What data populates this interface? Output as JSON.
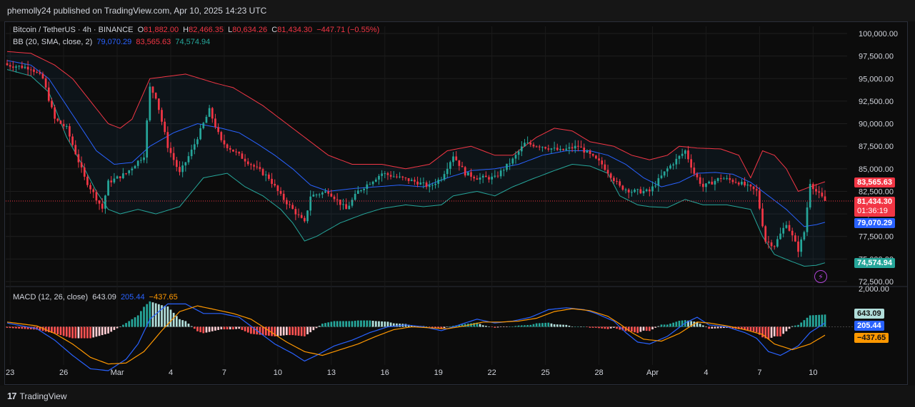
{
  "publish": {
    "text": "phemolly24 published on TradingView.com, Apr 10, 2025 14:23 UTC"
  },
  "symbol": {
    "title": "Bitcoin / TetherUS · 4h · BINANCE",
    "open_label": "O",
    "open": "81,882.00",
    "high_label": "H",
    "high": "82,466.35",
    "low_label": "L",
    "low": "80,634.26",
    "close_label": "C",
    "close": "81,434.30",
    "change": "−447.71 (−0.55%)"
  },
  "bb": {
    "label": "BB (20, SMA, close, 2)",
    "basis": "79,070.29",
    "upper": "83,565.63",
    "lower": "74,574.94"
  },
  "macd": {
    "label": "MACD (12, 26, close)",
    "hist": "643.09",
    "macd": "205.44",
    "signal": "−437.65"
  },
  "price_tags": {
    "upper": "83,565.63",
    "last": "81,434.30",
    "countdown": "01:36:19",
    "basis": "79,070.29",
    "lower": "74,574.94",
    "macd_hist": "643.09",
    "macd_line": "205.44",
    "macd_signal": "−437.65"
  },
  "footer": {
    "brand": "TradingView"
  },
  "colors": {
    "up": "#26a69a",
    "down": "#f23645",
    "bb_upper": "#f23645",
    "bb_basis": "#2962ff",
    "bb_lower": "#26a69a",
    "macd_line": "#2962ff",
    "signal_line": "#ff9800",
    "bg": "#0f0f0f"
  },
  "icons": {
    "bolt": "lightning-icon",
    "logo": "tradingview-logo-icon"
  },
  "chart_data": {
    "type": "candlestick",
    "title": "Bitcoin / TetherUS · 4h · BINANCE",
    "ylim": [
      72500,
      100000
    ],
    "y_ticks": [
      "100,000.00",
      "97,500.00",
      "95,000.00",
      "92,500.00",
      "90,000.00",
      "87,500.00",
      "85,000.00",
      "82,500.00",
      "80,000.00",
      "77,500.00",
      "75,000.00",
      "72,500.00"
    ],
    "y_tick_values": [
      100000,
      97500,
      95000,
      92500,
      90000,
      87500,
      85000,
      82500,
      80000,
      77500,
      75000,
      72500
    ],
    "x_ticks": [
      "23",
      "26",
      "Mar",
      "4",
      "7",
      "10",
      "13",
      "16",
      "19",
      "22",
      "25",
      "28",
      "Apr",
      "4",
      "7",
      "10"
    ],
    "x_tick_index": [
      1,
      19,
      37,
      55,
      73,
      91,
      109,
      127,
      145,
      163,
      181,
      199,
      217,
      235,
      253,
      271
    ],
    "num_bars": 276,
    "close_anchors": [
      [
        0,
        96500
      ],
      [
        8,
        96200
      ],
      [
        12,
        95000
      ],
      [
        16,
        90500
      ],
      [
        20,
        89500
      ],
      [
        26,
        84000
      ],
      [
        32,
        80600
      ],
      [
        34,
        83500
      ],
      [
        40,
        84500
      ],
      [
        46,
        86500
      ],
      [
        48,
        94000
      ],
      [
        50,
        93000
      ],
      [
        54,
        87500
      ],
      [
        58,
        84500
      ],
      [
        62,
        87000
      ],
      [
        68,
        91500
      ],
      [
        72,
        88000
      ],
      [
        78,
        86500
      ],
      [
        82,
        85500
      ],
      [
        88,
        84000
      ],
      [
        92,
        82000
      ],
      [
        96,
        80500
      ],
      [
        100,
        79000
      ],
      [
        102,
        82000
      ],
      [
        108,
        82500
      ],
      [
        114,
        80500
      ],
      [
        118,
        82500
      ],
      [
        126,
        84500
      ],
      [
        132,
        84000
      ],
      [
        138,
        83500
      ],
      [
        142,
        83000
      ],
      [
        146,
        84000
      ],
      [
        150,
        86500
      ],
      [
        154,
        84500
      ],
      [
        158,
        84000
      ],
      [
        164,
        84000
      ],
      [
        170,
        86000
      ],
      [
        174,
        87800
      ],
      [
        180,
        87500
      ],
      [
        186,
        87000
      ],
      [
        192,
        87500
      ],
      [
        196,
        86500
      ],
      [
        200,
        85500
      ],
      [
        206,
        83000
      ],
      [
        210,
        82500
      ],
      [
        216,
        82500
      ],
      [
        222,
        85000
      ],
      [
        228,
        87000
      ],
      [
        231,
        84500
      ],
      [
        234,
        83000
      ],
      [
        240,
        84000
      ],
      [
        246,
        83500
      ],
      [
        252,
        82500
      ],
      [
        255,
        77000
      ],
      [
        258,
        76500
      ],
      [
        262,
        79000
      ],
      [
        266,
        76000
      ],
      [
        268,
        78000
      ],
      [
        270,
        83500
      ],
      [
        272,
        82500
      ],
      [
        275,
        81434
      ]
    ],
    "bb_upper_anchors": [
      [
        0,
        98000
      ],
      [
        8,
        97800
      ],
      [
        16,
        96500
      ],
      [
        22,
        95000
      ],
      [
        28,
        92500
      ],
      [
        34,
        90000
      ],
      [
        38,
        89500
      ],
      [
        42,
        90500
      ],
      [
        48,
        95000
      ],
      [
        60,
        95500
      ],
      [
        70,
        94500
      ],
      [
        76,
        94000
      ],
      [
        86,
        92000
      ],
      [
        94,
        90000
      ],
      [
        100,
        88500
      ],
      [
        108,
        86500
      ],
      [
        116,
        85500
      ],
      [
        126,
        85500
      ],
      [
        134,
        85000
      ],
      [
        142,
        85500
      ],
      [
        148,
        87000
      ],
      [
        156,
        87500
      ],
      [
        164,
        86500
      ],
      [
        170,
        86500
      ],
      [
        178,
        88500
      ],
      [
        184,
        89500
      ],
      [
        190,
        89200
      ],
      [
        196,
        88000
      ],
      [
        204,
        87500
      ],
      [
        210,
        86500
      ],
      [
        216,
        86000
      ],
      [
        222,
        86500
      ],
      [
        226,
        87500
      ],
      [
        232,
        87300
      ],
      [
        240,
        87200
      ],
      [
        246,
        86500
      ],
      [
        250,
        84000
      ],
      [
        254,
        87000
      ],
      [
        258,
        86500
      ],
      [
        262,
        85000
      ],
      [
        266,
        82500
      ],
      [
        270,
        83000
      ],
      [
        275,
        83565
      ]
    ],
    "bb_basis_anchors": [
      [
        0,
        97000
      ],
      [
        8,
        96500
      ],
      [
        14,
        95000
      ],
      [
        20,
        92000
      ],
      [
        26,
        89000
      ],
      [
        30,
        87000
      ],
      [
        36,
        85500
      ],
      [
        42,
        85700
      ],
      [
        48,
        87500
      ],
      [
        56,
        89000
      ],
      [
        64,
        90000
      ],
      [
        72,
        89500
      ],
      [
        78,
        89000
      ],
      [
        84,
        87800
      ],
      [
        90,
        86500
      ],
      [
        96,
        85000
      ],
      [
        102,
        83200
      ],
      [
        108,
        82500
      ],
      [
        116,
        82800
      ],
      [
        124,
        83000
      ],
      [
        132,
        83200
      ],
      [
        140,
        83000
      ],
      [
        148,
        84000
      ],
      [
        156,
        84800
      ],
      [
        164,
        85000
      ],
      [
        172,
        85500
      ],
      [
        180,
        86500
      ],
      [
        188,
        87000
      ],
      [
        196,
        87000
      ],
      [
        202,
        86500
      ],
      [
        208,
        85500
      ],
      [
        214,
        84000
      ],
      [
        220,
        83000
      ],
      [
        226,
        83500
      ],
      [
        232,
        84500
      ],
      [
        238,
        84600
      ],
      [
        244,
        84400
      ],
      [
        250,
        83500
      ],
      [
        256,
        82000
      ],
      [
        262,
        80500
      ],
      [
        268,
        78600
      ],
      [
        272,
        78800
      ],
      [
        275,
        79070
      ]
    ],
    "bb_lower_anchors": [
      [
        0,
        96000
      ],
      [
        8,
        95300
      ],
      [
        14,
        93500
      ],
      [
        20,
        88500
      ],
      [
        26,
        85000
      ],
      [
        30,
        82500
      ],
      [
        34,
        80500
      ],
      [
        38,
        80000
      ],
      [
        44,
        80500
      ],
      [
        50,
        80000
      ],
      [
        58,
        80800
      ],
      [
        66,
        84000
      ],
      [
        74,
        84500
      ],
      [
        80,
        83000
      ],
      [
        86,
        82000
      ],
      [
        92,
        80500
      ],
      [
        96,
        79000
      ],
      [
        100,
        77000
      ],
      [
        104,
        77500
      ],
      [
        112,
        79000
      ],
      [
        120,
        80000
      ],
      [
        126,
        80600
      ],
      [
        134,
        81000
      ],
      [
        140,
        80800
      ],
      [
        146,
        81000
      ],
      [
        150,
        82000
      ],
      [
        158,
        82500
      ],
      [
        164,
        82000
      ],
      [
        170,
        83000
      ],
      [
        176,
        83800
      ],
      [
        184,
        84800
      ],
      [
        190,
        85500
      ],
      [
        196,
        85300
      ],
      [
        202,
        84500
      ],
      [
        206,
        82000
      ],
      [
        212,
        81000
      ],
      [
        216,
        80800
      ],
      [
        222,
        80700
      ],
      [
        228,
        81600
      ],
      [
        234,
        81000
      ],
      [
        242,
        81000
      ],
      [
        250,
        80500
      ],
      [
        254,
        77500
      ],
      [
        258,
        75500
      ],
      [
        264,
        74700
      ],
      [
        268,
        74200
      ],
      [
        272,
        74300
      ],
      [
        275,
        74575
      ]
    ],
    "macd_range": [
      -2000,
      2000
    ],
    "macd_anchors": [
      [
        0,
        200
      ],
      [
        10,
        -100
      ],
      [
        16,
        -700
      ],
      [
        22,
        -1500
      ],
      [
        28,
        -2200
      ],
      [
        34,
        -2300
      ],
      [
        40,
        -1700
      ],
      [
        44,
        -900
      ],
      [
        48,
        400
      ],
      [
        54,
        1200
      ],
      [
        60,
        1200
      ],
      [
        66,
        700
      ],
      [
        72,
        700
      ],
      [
        78,
        500
      ],
      [
        84,
        -200
      ],
      [
        90,
        -900
      ],
      [
        96,
        -1400
      ],
      [
        100,
        -1800
      ],
      [
        104,
        -1500
      ],
      [
        110,
        -1000
      ],
      [
        116,
        -700
      ],
      [
        122,
        -300
      ],
      [
        128,
        0
      ],
      [
        134,
        100
      ],
      [
        140,
        0
      ],
      [
        146,
        -200
      ],
      [
        152,
        100
      ],
      [
        158,
        400
      ],
      [
        164,
        200
      ],
      [
        170,
        300
      ],
      [
        176,
        500
      ],
      [
        182,
        900
      ],
      [
        188,
        1000
      ],
      [
        194,
        900
      ],
      [
        198,
        700
      ],
      [
        204,
        300
      ],
      [
        208,
        -300
      ],
      [
        212,
        -800
      ],
      [
        216,
        -900
      ],
      [
        222,
        -500
      ],
      [
        228,
        200
      ],
      [
        232,
        500
      ],
      [
        236,
        100
      ],
      [
        242,
        0
      ],
      [
        248,
        -300
      ],
      [
        252,
        -600
      ],
      [
        256,
        -1300
      ],
      [
        260,
        -1500
      ],
      [
        266,
        -1000
      ],
      [
        270,
        -300
      ],
      [
        275,
        205
      ]
    ],
    "signal_anchors": [
      [
        0,
        250
      ],
      [
        10,
        50
      ],
      [
        16,
        -350
      ],
      [
        22,
        -900
      ],
      [
        28,
        -1600
      ],
      [
        34,
        -1950
      ],
      [
        40,
        -1900
      ],
      [
        46,
        -1300
      ],
      [
        52,
        -200
      ],
      [
        58,
        800
      ],
      [
        64,
        1100
      ],
      [
        70,
        900
      ],
      [
        76,
        700
      ],
      [
        82,
        400
      ],
      [
        88,
        -200
      ],
      [
        94,
        -800
      ],
      [
        100,
        -1300
      ],
      [
        106,
        -1500
      ],
      [
        112,
        -1200
      ],
      [
        118,
        -900
      ],
      [
        124,
        -500
      ],
      [
        130,
        -150
      ],
      [
        136,
        0
      ],
      [
        142,
        -50
      ],
      [
        148,
        -100
      ],
      [
        154,
        50
      ],
      [
        160,
        250
      ],
      [
        166,
        250
      ],
      [
        172,
        300
      ],
      [
        178,
        450
      ],
      [
        184,
        800
      ],
      [
        190,
        950
      ],
      [
        196,
        850
      ],
      [
        202,
        550
      ],
      [
        206,
        150
      ],
      [
        210,
        -300
      ],
      [
        214,
        -650
      ],
      [
        220,
        -750
      ],
      [
        226,
        -350
      ],
      [
        232,
        250
      ],
      [
        236,
        200
      ],
      [
        242,
        50
      ],
      [
        248,
        -150
      ],
      [
        254,
        -400
      ],
      [
        258,
        -900
      ],
      [
        264,
        -1200
      ],
      [
        270,
        -900
      ],
      [
        275,
        -438
      ]
    ]
  }
}
